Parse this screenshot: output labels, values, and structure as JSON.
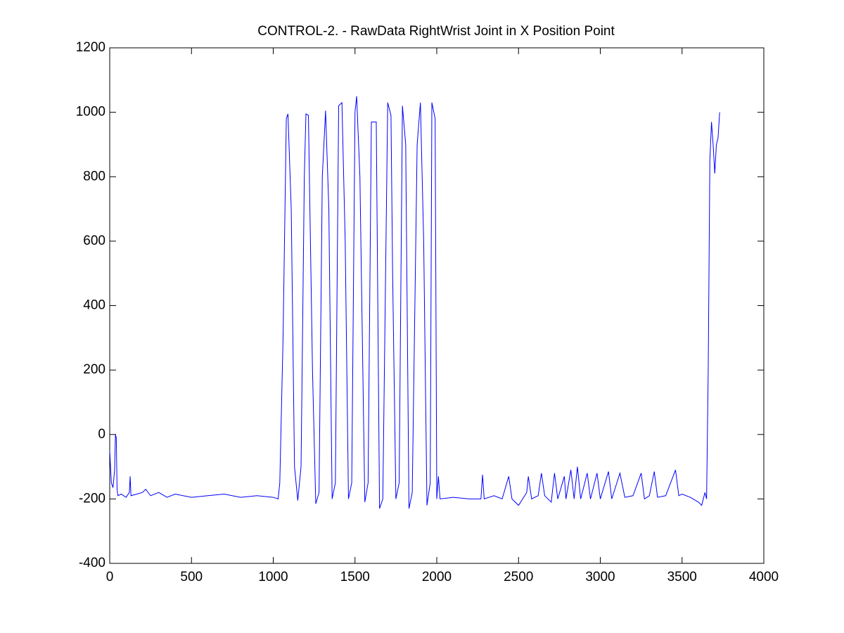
{
  "chart_data": {
    "type": "line",
    "title": "CONTROL-2. - RawData RightWrist Joint in X Position Point",
    "x": [
      0,
      10,
      20,
      30,
      35,
      40,
      45,
      50,
      70,
      100,
      120,
      125,
      130,
      200,
      220,
      250,
      300,
      350,
      400,
      500,
      600,
      700,
      800,
      900,
      1000,
      1030,
      1040,
      1060,
      1080,
      1090,
      1110,
      1130,
      1150,
      1170,
      1190,
      1200,
      1215,
      1240,
      1260,
      1280,
      1300,
      1320,
      1340,
      1360,
      1380,
      1400,
      1420,
      1440,
      1460,
      1480,
      1500,
      1510,
      1530,
      1560,
      1580,
      1600,
      1630,
      1650,
      1670,
      1700,
      1720,
      1730,
      1750,
      1770,
      1790,
      1810,
      1830,
      1850,
      1880,
      1900,
      1920,
      1940,
      1960,
      1970,
      1990,
      2000,
      2010,
      2020,
      2100,
      2200,
      2270,
      2280,
      2290,
      2350,
      2400,
      2440,
      2460,
      2500,
      2550,
      2560,
      2580,
      2620,
      2640,
      2660,
      2700,
      2720,
      2740,
      2780,
      2790,
      2820,
      2840,
      2860,
      2880,
      2920,
      2940,
      2980,
      3000,
      3050,
      3070,
      3120,
      3150,
      3200,
      3250,
      3270,
      3300,
      3330,
      3350,
      3400,
      3460,
      3480,
      3500,
      3550,
      3600,
      3620,
      3640,
      3650,
      3660,
      3670,
      3680,
      3690,
      3700,
      3710,
      3720,
      3730
    ],
    "series": [
      {
        "color": "#0000ff",
        "values": [
          -50,
          -150,
          -165,
          -110,
          0,
          -10,
          -170,
          -190,
          -185,
          -195,
          -180,
          -130,
          -190,
          -180,
          -170,
          -190,
          -180,
          -195,
          -185,
          -195,
          -190,
          -185,
          -195,
          -190,
          -195,
          -200,
          -150,
          300,
          980,
          995,
          700,
          -100,
          -205,
          -100,
          800,
          995,
          990,
          200,
          -215,
          -180,
          800,
          1005,
          700,
          -200,
          -150,
          1020,
          1030,
          600,
          -200,
          -150,
          1000,
          1050,
          800,
          -210,
          -150,
          970,
          970,
          -230,
          -200,
          1030,
          990,
          500,
          -200,
          -150,
          1020,
          900,
          -230,
          -180,
          900,
          1030,
          600,
          -220,
          -150,
          1030,
          980,
          -200,
          -130,
          -200,
          -195,
          -200,
          -200,
          -125,
          -200,
          -190,
          -200,
          -130,
          -200,
          -220,
          -180,
          -130,
          -200,
          -190,
          -120,
          -190,
          -210,
          -120,
          -200,
          -130,
          -200,
          -110,
          -200,
          -100,
          -200,
          -120,
          -200,
          -120,
          -200,
          -115,
          -200,
          -120,
          -195,
          -190,
          -120,
          -200,
          -190,
          -115,
          -195,
          -190,
          -110,
          -190,
          -185,
          -195,
          -210,
          -220,
          -180,
          -200,
          200,
          850,
          970,
          900,
          810,
          900,
          920,
          1000
        ]
      }
    ],
    "xlim": [
      0,
      4000
    ],
    "xticks": [
      0,
      500,
      1000,
      1500,
      2000,
      2500,
      3000,
      3500,
      4000
    ],
    "ylim": [
      -400,
      1200
    ],
    "yticks": [
      -400,
      -200,
      0,
      200,
      400,
      600,
      800,
      1000,
      1200
    ]
  }
}
